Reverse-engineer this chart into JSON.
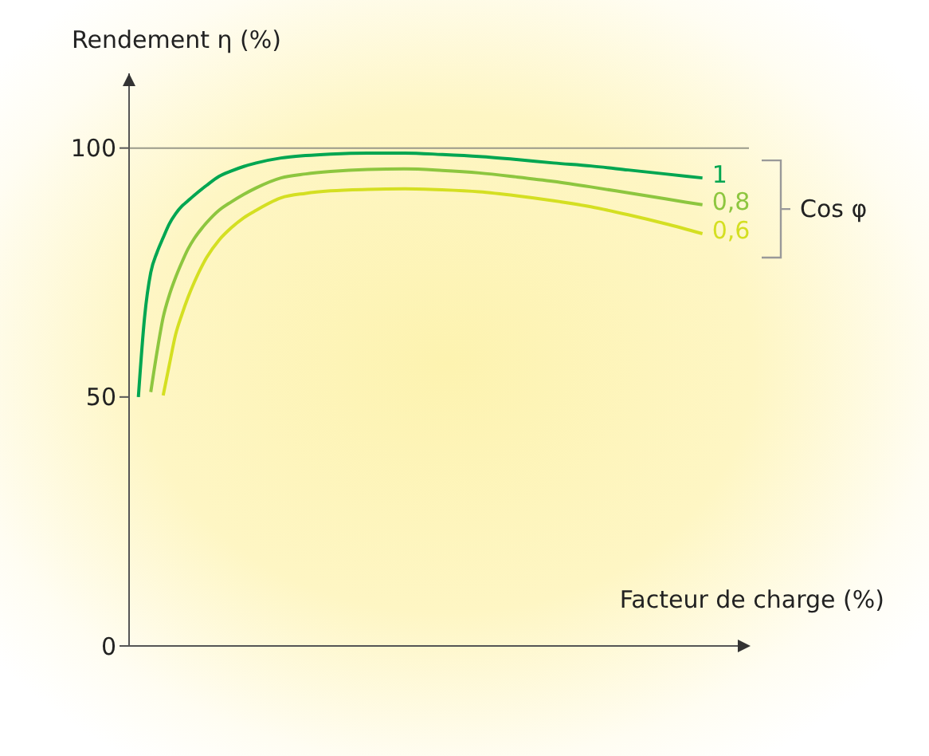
{
  "chart_data": {
    "type": "line",
    "ylabel": "Rendement η (%)",
    "xlabel": "Facteur de charge (%)",
    "legend_title": "Cos φ",
    "legend": false,
    "tick_labels": "y",
    "grid": false,
    "marker": "none",
    "line_style": "solid",
    "categories": [
      null,
      null,
      null,
      null,
      null,
      null,
      null,
      null,
      null,
      null,
      null,
      null,
      null,
      null,
      null,
      null,
      null,
      null,
      null,
      null,
      null,
      null,
      null,
      null,
      null,
      null,
      null,
      null,
      null,
      null,
      null,
      null,
      null,
      null,
      null,
      null,
      null,
      null,
      null,
      null,
      null,
      null,
      null,
      null,
      null,
      null,
      null,
      null,
      null,
      null,
      null,
      null,
      null,
      null,
      null,
      null,
      null,
      null,
      null,
      null,
      null,
      null,
      null,
      null,
      null,
      null,
      null,
      null,
      null,
      null,
      null,
      null,
      null,
      null,
      null,
      null,
      null,
      null,
      null,
      null,
      null,
      null,
      null,
      null,
      null,
      null,
      null,
      null,
      null,
      null,
      null,
      null,
      null,
      null,
      null,
      null,
      null,
      null,
      null,
      null
    ],
    "ylim": [
      0,
      115
    ],
    "yticks": [
      0,
      50,
      100
    ],
    "ref_lines": [
      {
        "axis": "y",
        "value": 100,
        "color": "#9a9a8a"
      }
    ],
    "series": [
      {
        "name": "1",
        "color": "#00a651",
        "values": [
          null,
          50,
          66,
          75,
          79,
          82,
          84.8,
          86.8,
          88.3,
          89.4,
          90.5,
          null,
          92.5,
          null,
          94.3,
          null,
          95.4,
          null,
          96.3,
          null,
          97,
          null,
          null,
          null,
          98,
          null,
          null,
          null,
          98.5,
          null,
          null,
          null,
          98.8,
          null,
          null,
          null,
          null,
          null,
          99,
          null,
          null,
          null,
          null,
          null,
          99,
          null,
          null,
          null,
          null,
          null,
          98.7,
          null,
          null,
          null,
          null,
          null,
          98.3,
          null,
          null,
          null,
          null,
          null,
          97.7,
          null,
          null,
          null,
          null,
          null,
          97,
          null,
          null,
          null,
          null,
          null,
          96.4,
          null,
          null,
          null,
          null,
          null,
          95.6,
          null,
          null,
          null,
          null,
          null,
          94.8,
          null,
          null,
          null,
          null,
          null,
          94,
          null,
          null,
          null,
          null,
          null,
          null,
          null
        ]
      },
      {
        "name": "0,8",
        "color": "#8dc63f",
        "values": [
          null,
          null,
          null,
          51,
          59,
          66,
          70.5,
          74,
          77,
          79.7,
          81.8,
          null,
          85,
          null,
          87.5,
          null,
          89.2,
          null,
          90.7,
          null,
          92,
          null,
          null,
          null,
          94,
          null,
          null,
          null,
          94.8,
          null,
          null,
          null,
          95.3,
          null,
          null,
          null,
          null,
          null,
          95.7,
          null,
          null,
          null,
          null,
          null,
          95.8,
          null,
          null,
          null,
          null,
          null,
          95.5,
          null,
          null,
          null,
          null,
          null,
          95,
          null,
          null,
          null,
          null,
          null,
          94.2,
          null,
          null,
          null,
          null,
          null,
          93.3,
          null,
          null,
          null,
          null,
          null,
          92.2,
          null,
          null,
          null,
          null,
          null,
          91,
          null,
          null,
          null,
          null,
          null,
          89.8,
          null,
          null,
          null,
          null,
          null,
          88.6,
          null,
          null,
          null,
          null,
          null,
          null,
          null
        ]
      },
      {
        "name": "0,6",
        "color": "#d4df22",
        "values": [
          null,
          null,
          null,
          null,
          null,
          50.3,
          56.5,
          62.5,
          66.5,
          70,
          73,
          null,
          78,
          null,
          81.5,
          null,
          84,
          null,
          86,
          null,
          87.5,
          null,
          null,
          null,
          90,
          null,
          null,
          null,
          90.9,
          null,
          null,
          null,
          91.4,
          null,
          null,
          null,
          null,
          null,
          91.7,
          null,
          null,
          null,
          null,
          null,
          91.8,
          null,
          null,
          null,
          null,
          null,
          91.6,
          null,
          null,
          null,
          null,
          null,
          91.2,
          null,
          null,
          null,
          null,
          null,
          90.4,
          null,
          null,
          null,
          null,
          null,
          89.4,
          null,
          null,
          null,
          null,
          null,
          88.2,
          null,
          null,
          null,
          null,
          null,
          86.6,
          null,
          null,
          null,
          null,
          null,
          84.8,
          null,
          null,
          null,
          null,
          null,
          82.8,
          null,
          null,
          null,
          null,
          null,
          null,
          null
        ]
      }
    ]
  }
}
